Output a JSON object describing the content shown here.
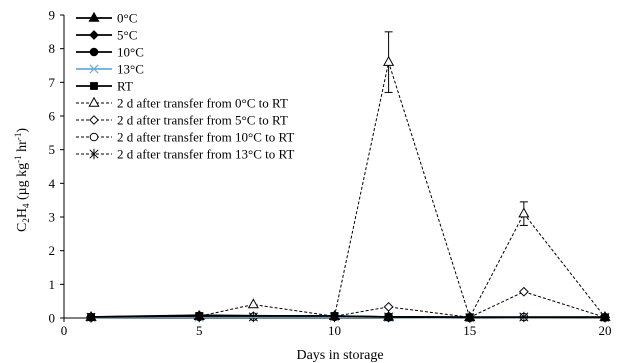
{
  "chart_data": {
    "type": "line",
    "title": "",
    "xlabel": "Days in storage",
    "ylabel": {
      "main": "C",
      "sub1": "2",
      "mid": "H",
      "sub2": "4",
      "unit_open": " (µg kg",
      "sup1": "-1",
      "unit_mid": " hr",
      "sup2": "-1",
      "unit_close": ")"
    },
    "xlim": [
      0,
      20
    ],
    "ylim": [
      0,
      9
    ],
    "xticks": [
      "0",
      "5",
      "10",
      "15",
      "20"
    ],
    "yticks": [
      "0",
      "1",
      "2",
      "3",
      "4",
      "5",
      "6",
      "7",
      "8",
      "9"
    ],
    "grid": false,
    "legend_position": "top-left",
    "series": [
      {
        "name": "0°C",
        "style": "solid",
        "marker": "triangle-filled",
        "x": [
          1,
          5,
          10,
          12,
          15,
          20
        ],
        "y": [
          0.02,
          0.05,
          0.05,
          0.03,
          0.02,
          0.02
        ]
      },
      {
        "name": "5°C",
        "style": "solid",
        "marker": "diamond-filled",
        "x": [
          1,
          5,
          10,
          12,
          15,
          20
        ],
        "y": [
          0.03,
          0.08,
          0.05,
          0.03,
          0.02,
          0.02
        ]
      },
      {
        "name": "10°C",
        "style": "solid",
        "marker": "circle-filled",
        "x": [
          1,
          5,
          10,
          12,
          15,
          20
        ],
        "y": [
          0.02,
          0.04,
          0.04,
          0.02,
          0.01,
          0.02
        ]
      },
      {
        "name": "13°C",
        "style": "solid",
        "marker": "x",
        "x": [
          1,
          5,
          10,
          12,
          15,
          20
        ],
        "y": [
          0.02,
          0.03,
          0.03,
          0.02,
          0.01,
          0.02
        ]
      },
      {
        "name": "RT",
        "style": "solid",
        "marker": "square-filled",
        "x": [
          1,
          5,
          10,
          12,
          15,
          20
        ],
        "y": [
          0.03,
          0.06,
          0.06,
          0.03,
          0.02,
          0.02
        ]
      },
      {
        "name": "2 d after transfer from 0°C to RT",
        "style": "dashed",
        "marker": "triangle-open",
        "x": [
          1,
          5,
          7,
          10,
          12,
          15,
          17,
          20
        ],
        "y": [
          0.02,
          0.05,
          0.4,
          0.05,
          7.6,
          0.02,
          3.1,
          0.02
        ],
        "error": [
          0,
          0,
          0,
          0,
          0.9,
          0,
          0.35,
          0
        ]
      },
      {
        "name": "2 d after transfer from 5°C to RT",
        "style": "dashed",
        "marker": "diamond-open",
        "x": [
          1,
          5,
          7,
          10,
          12,
          15,
          17,
          20
        ],
        "y": [
          0.02,
          0.05,
          0.05,
          0.05,
          0.33,
          0.02,
          0.78,
          0.02
        ]
      },
      {
        "name": "2 d after transfer from 10°C to RT",
        "style": "dashed",
        "marker": "circle-open",
        "x": [
          1,
          5,
          7,
          10,
          12,
          15,
          17,
          20
        ],
        "y": [
          0.02,
          0.04,
          0.04,
          0.04,
          0.04,
          0.01,
          0.03,
          0.02
        ]
      },
      {
        "name": "2 d after transfer from 13°C to RT",
        "style": "dashed",
        "marker": "star",
        "x": [
          1,
          5,
          7,
          10,
          12,
          15,
          17,
          20
        ],
        "y": [
          0.02,
          0.03,
          0.03,
          0.03,
          0.03,
          0.01,
          0.03,
          0.02
        ]
      }
    ]
  },
  "colors": {
    "line": "#000000",
    "series_13c": "#6aaed6",
    "background": "#ffffff"
  }
}
